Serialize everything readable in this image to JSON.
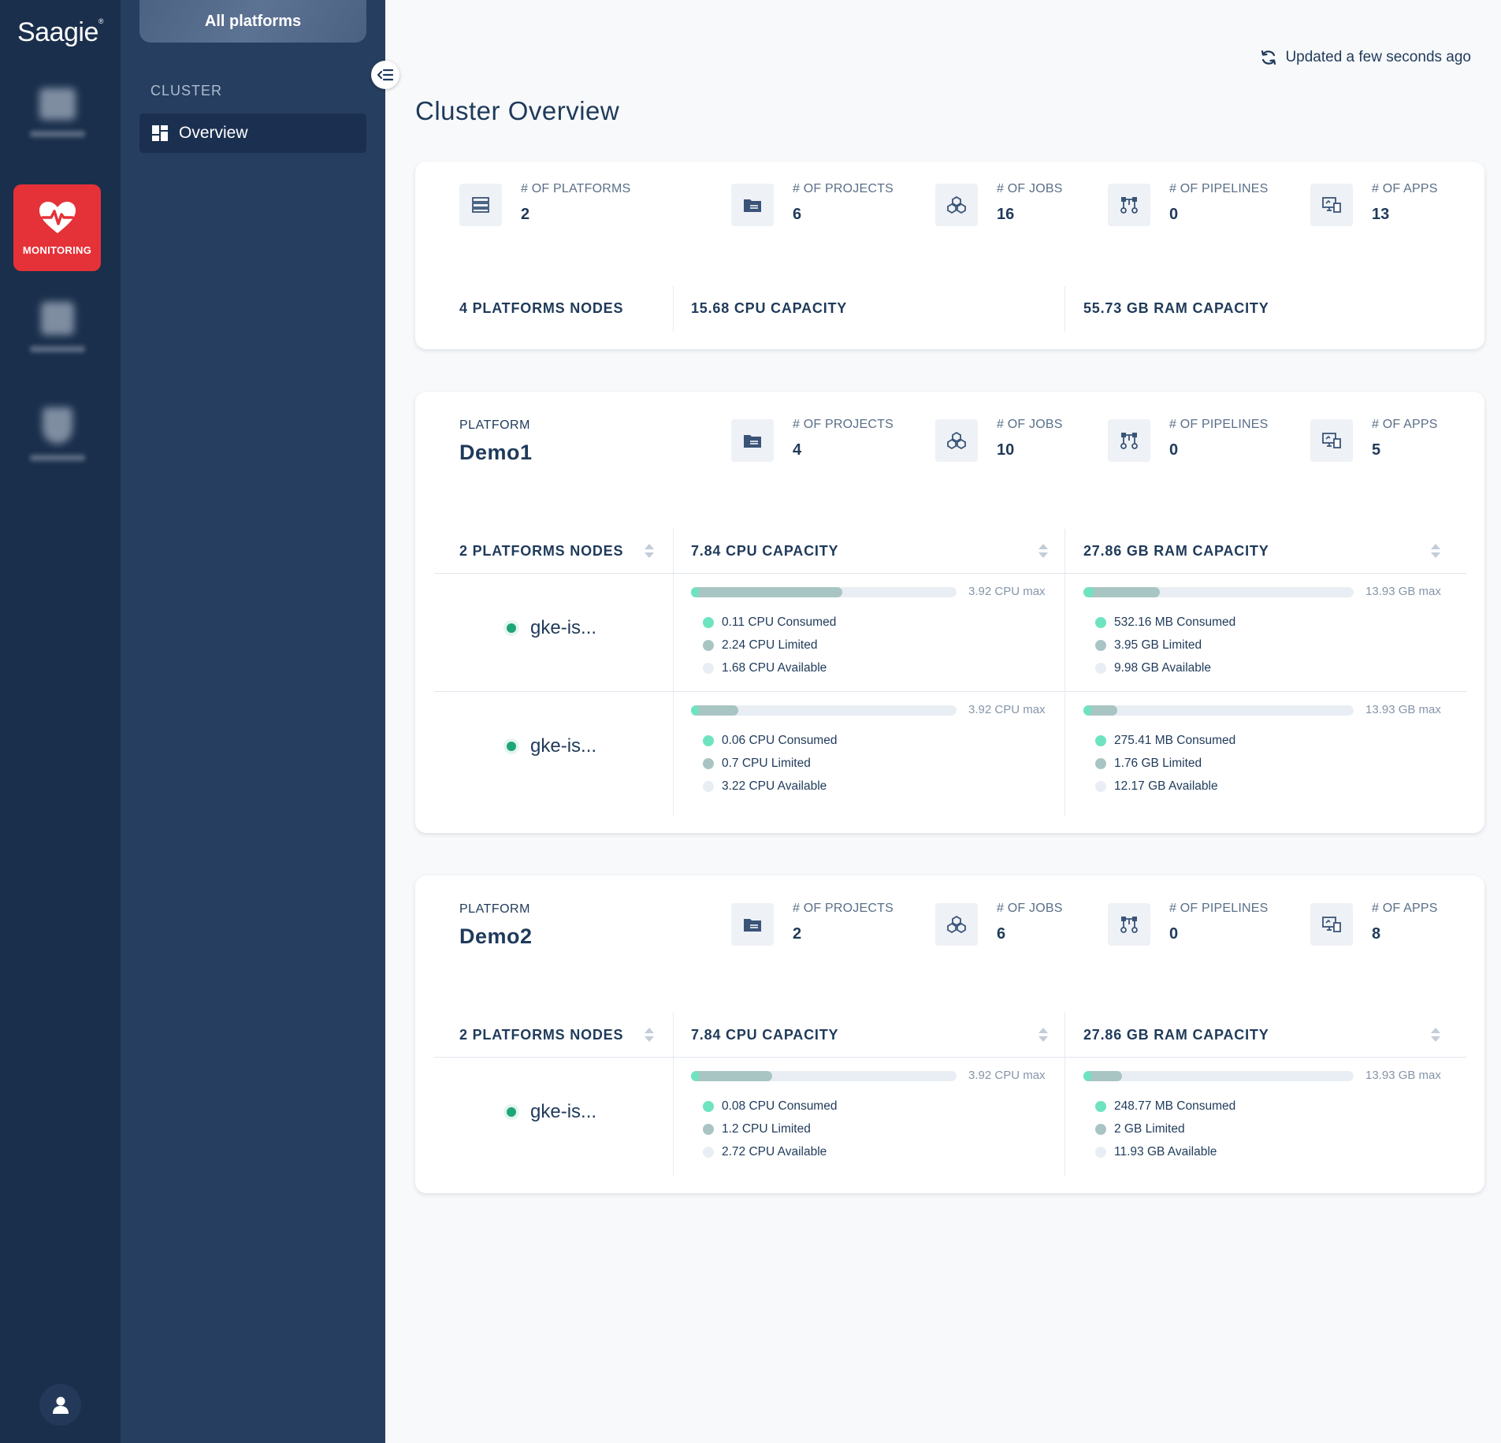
{
  "app": {
    "logo": "Saagie",
    "logo_mark": "®"
  },
  "rail": {
    "items": [
      {
        "name": "projects",
        "label": ""
      },
      {
        "name": "monitoring",
        "label": "MONITORING"
      },
      {
        "name": "catalog",
        "label": ""
      },
      {
        "name": "security",
        "label": ""
      }
    ]
  },
  "sidebar": {
    "platform_selector": "All platforms",
    "section_label": "CLUSTER",
    "nav": [
      {
        "label": "Overview"
      }
    ]
  },
  "header": {
    "updated": "Updated a few seconds ago",
    "title": "Cluster Overview"
  },
  "cluster": {
    "stats": [
      {
        "label": "# OF PLATFORMS",
        "value": "2"
      },
      {
        "label": "# OF PROJECTS",
        "value": "6"
      },
      {
        "label": "# OF JOBS",
        "value": "16"
      },
      {
        "label": "# OF PIPELINES",
        "value": "0"
      },
      {
        "label": "# OF APPS",
        "value": "13"
      }
    ],
    "nodes": "4 PLATFORMS NODES",
    "cpu": "15.68 CPU CAPACITY",
    "ram": "55.73 GB RAM CAPACITY"
  },
  "platforms": [
    {
      "label": "PLATFORM",
      "name": "Demo1",
      "stats": [
        {
          "label": "# OF PROJECTS",
          "value": "4"
        },
        {
          "label": "# OF JOBS",
          "value": "10"
        },
        {
          "label": "# OF PIPELINES",
          "value": "0"
        },
        {
          "label": "# OF APPS",
          "value": "5"
        }
      ],
      "nodes_header": "2 PLATFORMS NODES",
      "cpu_header": "7.84 CPU CAPACITY",
      "ram_header": "27.86 GB RAM CAPACITY",
      "nodes": [
        {
          "name": "gke-is...",
          "cpu": {
            "max": "3.92 CPU max",
            "consumed": "0.11 CPU Consumed",
            "limited": "2.24 CPU Limited",
            "available": "1.68 CPU Available",
            "consumed_frac": 0.028,
            "limited_frac": 0.571
          },
          "ram": {
            "max": "13.93 GB max",
            "consumed": "532.16 MB Consumed",
            "limited": "3.95 GB Limited",
            "available": "9.98 GB Available",
            "consumed_frac": 0.037,
            "limited_frac": 0.284
          }
        },
        {
          "name": "gke-is...",
          "cpu": {
            "max": "3.92 CPU max",
            "consumed": "0.06 CPU Consumed",
            "limited": "0.7 CPU Limited",
            "available": "3.22 CPU Available",
            "consumed_frac": 0.015,
            "limited_frac": 0.179
          },
          "ram": {
            "max": "13.93 GB max",
            "consumed": "275.41 MB Consumed",
            "limited": "1.76 GB Limited",
            "available": "12.17 GB Available",
            "consumed_frac": 0.019,
            "limited_frac": 0.126
          }
        }
      ]
    },
    {
      "label": "PLATFORM",
      "name": "Demo2",
      "stats": [
        {
          "label": "# OF PROJECTS",
          "value": "2"
        },
        {
          "label": "# OF JOBS",
          "value": "6"
        },
        {
          "label": "# OF PIPELINES",
          "value": "0"
        },
        {
          "label": "# OF APPS",
          "value": "8"
        }
      ],
      "nodes_header": "2 PLATFORMS NODES",
      "cpu_header": "7.84 CPU CAPACITY",
      "ram_header": "27.86 GB RAM CAPACITY",
      "nodes": [
        {
          "name": "gke-is...",
          "cpu": {
            "max": "3.92 CPU max",
            "consumed": "0.08 CPU Consumed",
            "limited": "1.2 CPU Limited",
            "available": "2.72 CPU Available",
            "consumed_frac": 0.02,
            "limited_frac": 0.306
          },
          "ram": {
            "max": "13.93 GB max",
            "consumed": "248.77 MB Consumed",
            "limited": "2 GB Limited",
            "available": "11.93 GB Available",
            "consumed_frac": 0.017,
            "limited_frac": 0.144
          }
        }
      ]
    }
  ],
  "colors": {
    "accent": "#e53238",
    "consumed": "#6fe3c0",
    "limited": "#a9c5c3",
    "available": "#e9eef4",
    "node_ok": "#1fa57a"
  }
}
